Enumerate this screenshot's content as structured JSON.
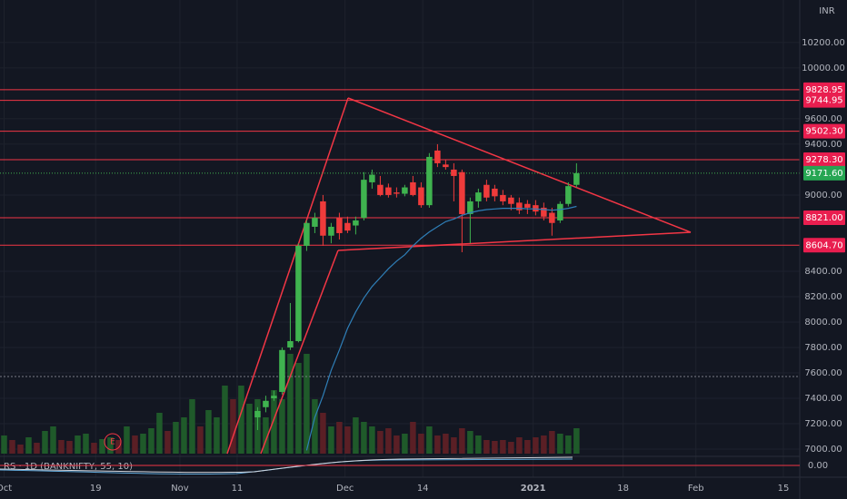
{
  "chart_data": {
    "type": "candlestick",
    "currency": "INR",
    "indicator_label": "RS · 1D (BANKNIFTY, 55, 10)",
    "xlim": [
      -0.5,
      97.3
    ],
    "xticks": [
      {
        "value": 0,
        "label": "Oct"
      },
      {
        "value": 11.2,
        "label": "19"
      },
      {
        "value": 21.5,
        "label": "Nov"
      },
      {
        "value": 28.5,
        "label": "11"
      },
      {
        "value": 41.7,
        "label": "Dec"
      },
      {
        "value": 51.2,
        "label": "14"
      },
      {
        "value": 64.7,
        "label": "2021"
      },
      {
        "value": 75.7,
        "label": "18"
      },
      {
        "value": 84.6,
        "label": "Feb"
      },
      {
        "value": 95.3,
        "label": "15"
      }
    ],
    "ylim": [
      6950,
      10535
    ],
    "yticks": [
      {
        "value": 10200,
        "label": "10200.00"
      },
      {
        "value": 10000,
        "label": "10000.00"
      },
      {
        "value": 9600,
        "label": "9600.00"
      },
      {
        "value": 9400,
        "label": "9400.00"
      },
      {
        "value": 9000,
        "label": "9000.00"
      },
      {
        "value": 8400,
        "label": "8400.00"
      },
      {
        "value": 8200,
        "label": "8200.00"
      },
      {
        "value": 8000,
        "label": "8000.00"
      },
      {
        "value": 7800,
        "label": "7800.00"
      },
      {
        "value": 7600,
        "label": "7600.00"
      },
      {
        "value": 7400,
        "label": "7400.00"
      },
      {
        "value": 7200,
        "label": "7200.00"
      },
      {
        "value": 7000,
        "label": "7000.00"
      }
    ],
    "levels": [
      {
        "value": 9828.95,
        "label": "9828.95"
      },
      {
        "value": 9744.95,
        "label": "9744.95"
      },
      {
        "value": 9502.3,
        "label": "9502.30"
      },
      {
        "value": 9278.3,
        "label": "9278.30"
      },
      {
        "value": 8821,
        "label": "8821.00"
      },
      {
        "value": 8604.7,
        "label": "8604.70"
      }
    ],
    "last_price": {
      "value": 9171.6,
      "label": "9171.60"
    },
    "rs_yticks": [
      {
        "value": 0,
        "label": "0.00"
      }
    ],
    "up_color": "#3fb34f",
    "down_color": "#ef3b3b",
    "level_color": "#f23645",
    "ma_color": "#2f7fb8",
    "candles": [
      null,
      null,
      null,
      null,
      null,
      null,
      null,
      null,
      null,
      null,
      null,
      null,
      null,
      null,
      null,
      null,
      null,
      null,
      null,
      null,
      null,
      null,
      null,
      null,
      null,
      null,
      null,
      null,
      null,
      null,
      null,
      [
        7250,
        7330,
        7150,
        7300
      ],
      [
        7330,
        7420,
        7290,
        7380
      ],
      [
        7400,
        7460,
        7380,
        7420
      ],
      [
        7450,
        7800,
        7430,
        7780
      ],
      [
        7800,
        8150,
        7780,
        7850
      ],
      [
        7850,
        8620,
        7840,
        8600
      ],
      [
        8600,
        8800,
        8560,
        8780
      ],
      [
        8750,
        8860,
        8700,
        8820
      ],
      [
        8950,
        9000,
        8600,
        8680
      ],
      [
        8680,
        8780,
        8620,
        8750
      ],
      [
        8820,
        8860,
        8650,
        8700
      ],
      [
        8780,
        8830,
        8700,
        8720
      ],
      [
        8760,
        8830,
        8690,
        8800
      ],
      [
        8820,
        9180,
        8800,
        9120
      ],
      [
        9100,
        9200,
        9050,
        9160
      ],
      [
        9080,
        9150,
        8990,
        9000
      ],
      [
        9060,
        9090,
        8980,
        9000
      ],
      [
        9020,
        9060,
        8980,
        9010
      ],
      [
        9010,
        9080,
        8990,
        9060
      ],
      [
        9100,
        9150,
        8990,
        9000
      ],
      [
        9060,
        9100,
        8900,
        8920
      ],
      [
        8920,
        9330,
        8900,
        9300
      ],
      [
        9350,
        9400,
        9220,
        9250
      ],
      [
        9240,
        9280,
        9200,
        9220
      ],
      [
        9200,
        9250,
        8950,
        9150
      ],
      [
        9180,
        9200,
        8550,
        8850
      ],
      [
        8850,
        8980,
        8620,
        8950
      ],
      [
        8950,
        9050,
        8900,
        9020
      ],
      [
        9080,
        9120,
        8950,
        8980
      ],
      [
        9050,
        9080,
        8950,
        8990
      ],
      [
        9000,
        9040,
        8920,
        8950
      ],
      [
        8980,
        9000,
        8880,
        8930
      ],
      [
        8940,
        8980,
        8850,
        8880
      ],
      [
        8930,
        8960,
        8850,
        8900
      ],
      [
        8920,
        8960,
        8840,
        8870
      ],
      [
        8900,
        8940,
        8800,
        8830
      ],
      [
        8860,
        8900,
        8680,
        8780
      ],
      [
        8800,
        8950,
        8780,
        8930
      ],
      [
        8930,
        9100,
        8910,
        9070
      ],
      [
        9080,
        9250,
        9060,
        9171.6
      ]
    ],
    "ma": [
      null,
      null,
      null,
      null,
      null,
      null,
      null,
      null,
      null,
      null,
      null,
      null,
      null,
      null,
      null,
      null,
      null,
      null,
      null,
      null,
      null,
      null,
      null,
      null,
      null,
      null,
      null,
      null,
      null,
      null,
      null,
      null,
      null,
      null,
      null,
      null,
      null,
      6990,
      7250,
      7420,
      7620,
      7780,
      7950,
      8080,
      8190,
      8280,
      8350,
      8420,
      8480,
      8530,
      8600,
      8660,
      8710,
      8750,
      8790,
      8810,
      8840,
      8860,
      8875,
      8885,
      8890,
      8895,
      8895,
      8895,
      8892,
      8890,
      8885,
      8880,
      8885,
      8895,
      8910
    ],
    "volume": [
      20,
      15,
      10,
      18,
      12,
      25,
      30,
      15,
      14,
      20,
      22,
      12,
      16,
      18,
      15,
      30,
      20,
      22,
      28,
      45,
      25,
      35,
      40,
      60,
      30,
      48,
      40,
      75,
      60,
      75,
      55,
      60,
      40,
      70,
      60,
      110,
      100,
      110,
      60,
      45,
      30,
      35,
      30,
      40,
      35,
      30,
      25,
      28,
      20,
      22,
      35,
      22,
      30,
      20,
      22,
      18,
      28,
      25,
      20,
      15,
      14,
      15,
      13,
      18,
      15,
      18,
      20,
      25,
      22,
      20,
      28
    ],
    "volume_up": [
      true,
      false,
      false,
      true,
      false,
      true,
      true,
      false,
      false,
      true,
      true,
      false,
      true,
      true,
      false,
      true,
      false,
      true,
      true,
      true,
      false,
      true,
      true,
      true,
      false,
      true,
      true,
      true,
      false,
      true,
      true,
      true,
      true,
      true,
      true,
      true,
      true,
      true,
      true,
      false,
      true,
      false,
      false,
      true,
      true,
      true,
      false,
      false,
      false,
      true,
      false,
      false,
      true,
      false,
      false,
      false,
      false,
      true,
      true,
      false,
      false,
      false,
      false,
      false,
      false,
      false,
      false,
      false,
      true,
      true,
      true
    ]
  }
}
